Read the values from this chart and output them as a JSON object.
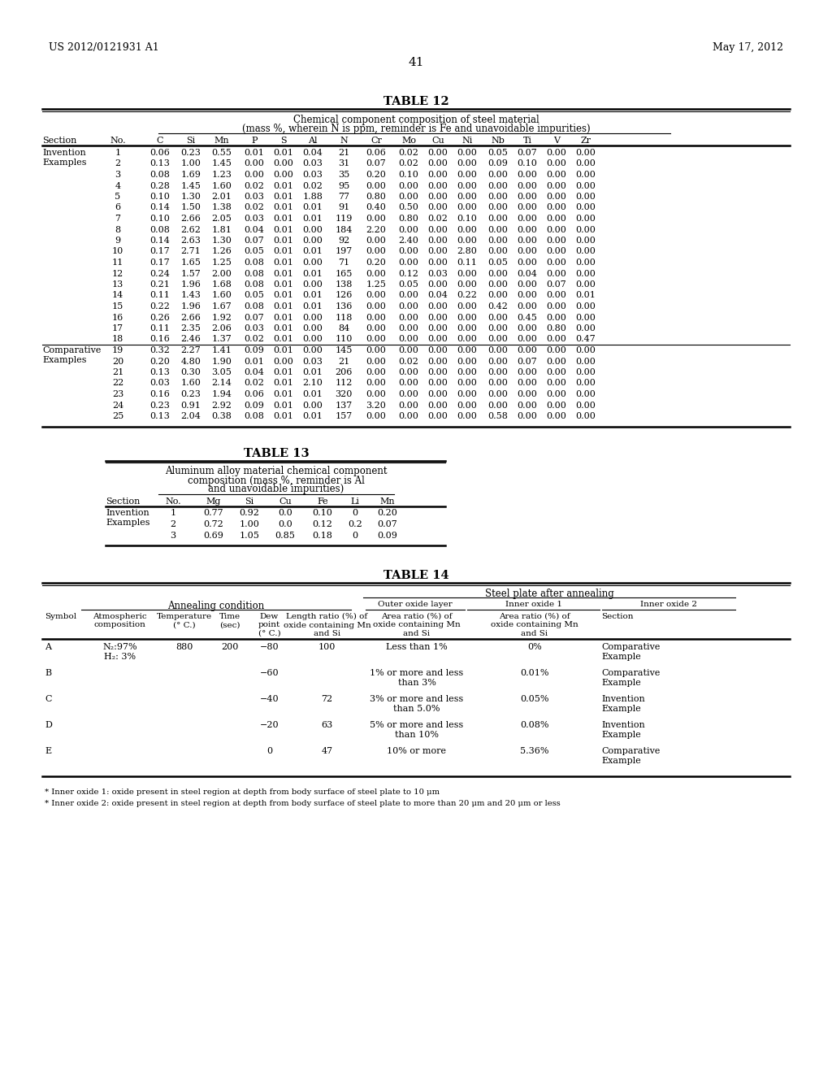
{
  "header_left": "US 2012/0121931 A1",
  "header_right": "May 17, 2012",
  "page_number": "41",
  "background_color": "#ffffff",
  "text_color": "#000000",
  "table12_title": "TABLE 12",
  "table12_subtitle1": "Chemical component composition of steel material",
  "table12_subtitle2": "(mass %, wherein N is ppm, reminder is Fe and unavoidable impurities)",
  "table12_data": [
    [
      "Invention\nExamples",
      "1",
      "0.06",
      "0.23",
      "0.55",
      "0.01",
      "0.01",
      "0.04",
      "21",
      "0.06",
      "0.02",
      "0.00",
      "0.00",
      "0.05",
      "0.07",
      "0.00",
      "0.00"
    ],
    [
      "",
      "2",
      "0.13",
      "1.00",
      "1.45",
      "0.00",
      "0.00",
      "0.03",
      "31",
      "0.07",
      "0.02",
      "0.00",
      "0.00",
      "0.09",
      "0.10",
      "0.00",
      "0.00"
    ],
    [
      "",
      "3",
      "0.08",
      "1.69",
      "1.23",
      "0.00",
      "0.00",
      "0.03",
      "35",
      "0.20",
      "0.10",
      "0.00",
      "0.00",
      "0.00",
      "0.00",
      "0.00",
      "0.00"
    ],
    [
      "",
      "4",
      "0.28",
      "1.45",
      "1.60",
      "0.02",
      "0.01",
      "0.02",
      "95",
      "0.00",
      "0.00",
      "0.00",
      "0.00",
      "0.00",
      "0.00",
      "0.00",
      "0.00"
    ],
    [
      "",
      "5",
      "0.10",
      "1.30",
      "2.01",
      "0.03",
      "0.01",
      "1.88",
      "77",
      "0.80",
      "0.00",
      "0.00",
      "0.00",
      "0.00",
      "0.00",
      "0.00",
      "0.00"
    ],
    [
      "",
      "6",
      "0.14",
      "1.50",
      "1.38",
      "0.02",
      "0.01",
      "0.01",
      "91",
      "0.40",
      "0.50",
      "0.00",
      "0.00",
      "0.00",
      "0.00",
      "0.00",
      "0.00"
    ],
    [
      "",
      "7",
      "0.10",
      "2.66",
      "2.05",
      "0.03",
      "0.01",
      "0.01",
      "119",
      "0.00",
      "0.80",
      "0.02",
      "0.10",
      "0.00",
      "0.00",
      "0.00",
      "0.00"
    ],
    [
      "",
      "8",
      "0.08",
      "2.62",
      "1.81",
      "0.04",
      "0.01",
      "0.00",
      "184",
      "2.20",
      "0.00",
      "0.00",
      "0.00",
      "0.00",
      "0.00",
      "0.00",
      "0.00"
    ],
    [
      "",
      "9",
      "0.14",
      "2.63",
      "1.30",
      "0.07",
      "0.01",
      "0.00",
      "92",
      "0.00",
      "2.40",
      "0.00",
      "0.00",
      "0.00",
      "0.00",
      "0.00",
      "0.00"
    ],
    [
      "",
      "10",
      "0.17",
      "2.71",
      "1.26",
      "0.05",
      "0.01",
      "0.01",
      "197",
      "0.00",
      "0.00",
      "0.00",
      "2.80",
      "0.00",
      "0.00",
      "0.00",
      "0.00"
    ],
    [
      "",
      "11",
      "0.17",
      "1.65",
      "1.25",
      "0.08",
      "0.01",
      "0.00",
      "71",
      "0.20",
      "0.00",
      "0.00",
      "0.11",
      "0.05",
      "0.00",
      "0.00",
      "0.00"
    ],
    [
      "",
      "12",
      "0.24",
      "1.57",
      "2.00",
      "0.08",
      "0.01",
      "0.01",
      "165",
      "0.00",
      "0.12",
      "0.03",
      "0.00",
      "0.00",
      "0.04",
      "0.00",
      "0.00"
    ],
    [
      "",
      "13",
      "0.21",
      "1.96",
      "1.68",
      "0.08",
      "0.01",
      "0.00",
      "138",
      "1.25",
      "0.05",
      "0.00",
      "0.00",
      "0.00",
      "0.00",
      "0.07",
      "0.00"
    ],
    [
      "",
      "14",
      "0.11",
      "1.43",
      "1.60",
      "0.05",
      "0.01",
      "0.01",
      "126",
      "0.00",
      "0.00",
      "0.04",
      "0.22",
      "0.00",
      "0.00",
      "0.00",
      "0.01"
    ],
    [
      "",
      "15",
      "0.22",
      "1.96",
      "1.67",
      "0.08",
      "0.01",
      "0.01",
      "136",
      "0.00",
      "0.00",
      "0.00",
      "0.00",
      "0.42",
      "0.00",
      "0.00",
      "0.00"
    ],
    [
      "",
      "16",
      "0.26",
      "2.66",
      "1.92",
      "0.07",
      "0.01",
      "0.00",
      "118",
      "0.00",
      "0.00",
      "0.00",
      "0.00",
      "0.00",
      "0.45",
      "0.00",
      "0.00"
    ],
    [
      "",
      "17",
      "0.11",
      "2.35",
      "2.06",
      "0.03",
      "0.01",
      "0.00",
      "84",
      "0.00",
      "0.00",
      "0.00",
      "0.00",
      "0.00",
      "0.00",
      "0.80",
      "0.00"
    ],
    [
      "",
      "18",
      "0.16",
      "2.46",
      "1.37",
      "0.02",
      "0.01",
      "0.00",
      "110",
      "0.00",
      "0.00",
      "0.00",
      "0.00",
      "0.00",
      "0.00",
      "0.00",
      "0.47"
    ],
    [
      "Comparative\nExamples",
      "19",
      "0.32",
      "2.27",
      "1.41",
      "0.09",
      "0.01",
      "0.00",
      "145",
      "0.00",
      "0.00",
      "0.00",
      "0.00",
      "0.00",
      "0.00",
      "0.00",
      "0.00"
    ],
    [
      "",
      "20",
      "0.20",
      "4.80",
      "1.90",
      "0.01",
      "0.00",
      "0.03",
      "21",
      "0.00",
      "0.02",
      "0.00",
      "0.00",
      "0.00",
      "0.07",
      "0.00",
      "0.00"
    ],
    [
      "",
      "21",
      "0.13",
      "0.30",
      "3.05",
      "0.04",
      "0.01",
      "0.01",
      "206",
      "0.00",
      "0.00",
      "0.00",
      "0.00",
      "0.00",
      "0.00",
      "0.00",
      "0.00"
    ],
    [
      "",
      "22",
      "0.03",
      "1.60",
      "2.14",
      "0.02",
      "0.01",
      "2.10",
      "112",
      "0.00",
      "0.00",
      "0.00",
      "0.00",
      "0.00",
      "0.00",
      "0.00",
      "0.00"
    ],
    [
      "",
      "23",
      "0.16",
      "0.23",
      "1.94",
      "0.06",
      "0.01",
      "0.01",
      "320",
      "0.00",
      "0.00",
      "0.00",
      "0.00",
      "0.00",
      "0.00",
      "0.00",
      "0.00"
    ],
    [
      "",
      "24",
      "0.23",
      "0.91",
      "2.92",
      "0.09",
      "0.01",
      "0.00",
      "137",
      "3.20",
      "0.00",
      "0.00",
      "0.00",
      "0.00",
      "0.00",
      "0.00",
      "0.00"
    ],
    [
      "",
      "25",
      "0.13",
      "2.04",
      "0.38",
      "0.08",
      "0.01",
      "0.01",
      "157",
      "0.00",
      "0.00",
      "0.00",
      "0.00",
      "0.58",
      "0.00",
      "0.00",
      "0.00"
    ]
  ],
  "table13_title": "TABLE 13",
  "table13_subtitle1": "Aluminum alloy material chemical component",
  "table13_subtitle2": "composition (mass %, reminder is Al",
  "table13_subtitle3": "and unavoidable impurities)",
  "table13_data": [
    [
      "Invention\nExamples",
      "1",
      "0.77",
      "0.92",
      "0.0",
      "0.10",
      "0",
      "0.20"
    ],
    [
      "",
      "2",
      "0.72",
      "1.00",
      "0.0",
      "0.12",
      "0.2",
      "0.07"
    ],
    [
      "",
      "3",
      "0.69",
      "1.05",
      "0.85",
      "0.18",
      "0",
      "0.09"
    ]
  ],
  "table14_title": "TABLE 14",
  "table14_header1": "Steel plate after annealing",
  "table14_header2a": "Annealing condition",
  "table14_header2b": "Outer oxide layer",
  "table14_header2c": "Inner oxide 1",
  "table14_header2d": "Inner oxide 2",
  "table14_data": [
    [
      "A",
      "N₂:97%\nH₂: 3%",
      "880",
      "200",
      "−80",
      "100",
      "Less than 1%",
      "0%",
      "Comparative\nExample"
    ],
    [
      "B",
      "",
      "",
      "",
      "−60",
      "",
      "1% or more and less\nthan 3%",
      "0.01%",
      "Comparative\nExample"
    ],
    [
      "C",
      "",
      "",
      "",
      "−40",
      "72",
      "3% or more and less\nthan 5.0%",
      "0.05%",
      "Invention\nExample"
    ],
    [
      "D",
      "",
      "",
      "",
      "−20",
      "63",
      "5% or more and less\nthan 10%",
      "0.08%",
      "Invention\nExample"
    ],
    [
      "E",
      "",
      "",
      "",
      "0",
      "47",
      "10% or more",
      "5.36%",
      "Comparative\nExample"
    ]
  ],
  "table14_footnote1": "* Inner oxide 1: oxide present in steel region at depth from body surface of steel plate to 10 μm",
  "table14_footnote2": "* Inner oxide 2: oxide present in steel region at depth from body surface of steel plate to more than 20 μm and 20 μm or less"
}
